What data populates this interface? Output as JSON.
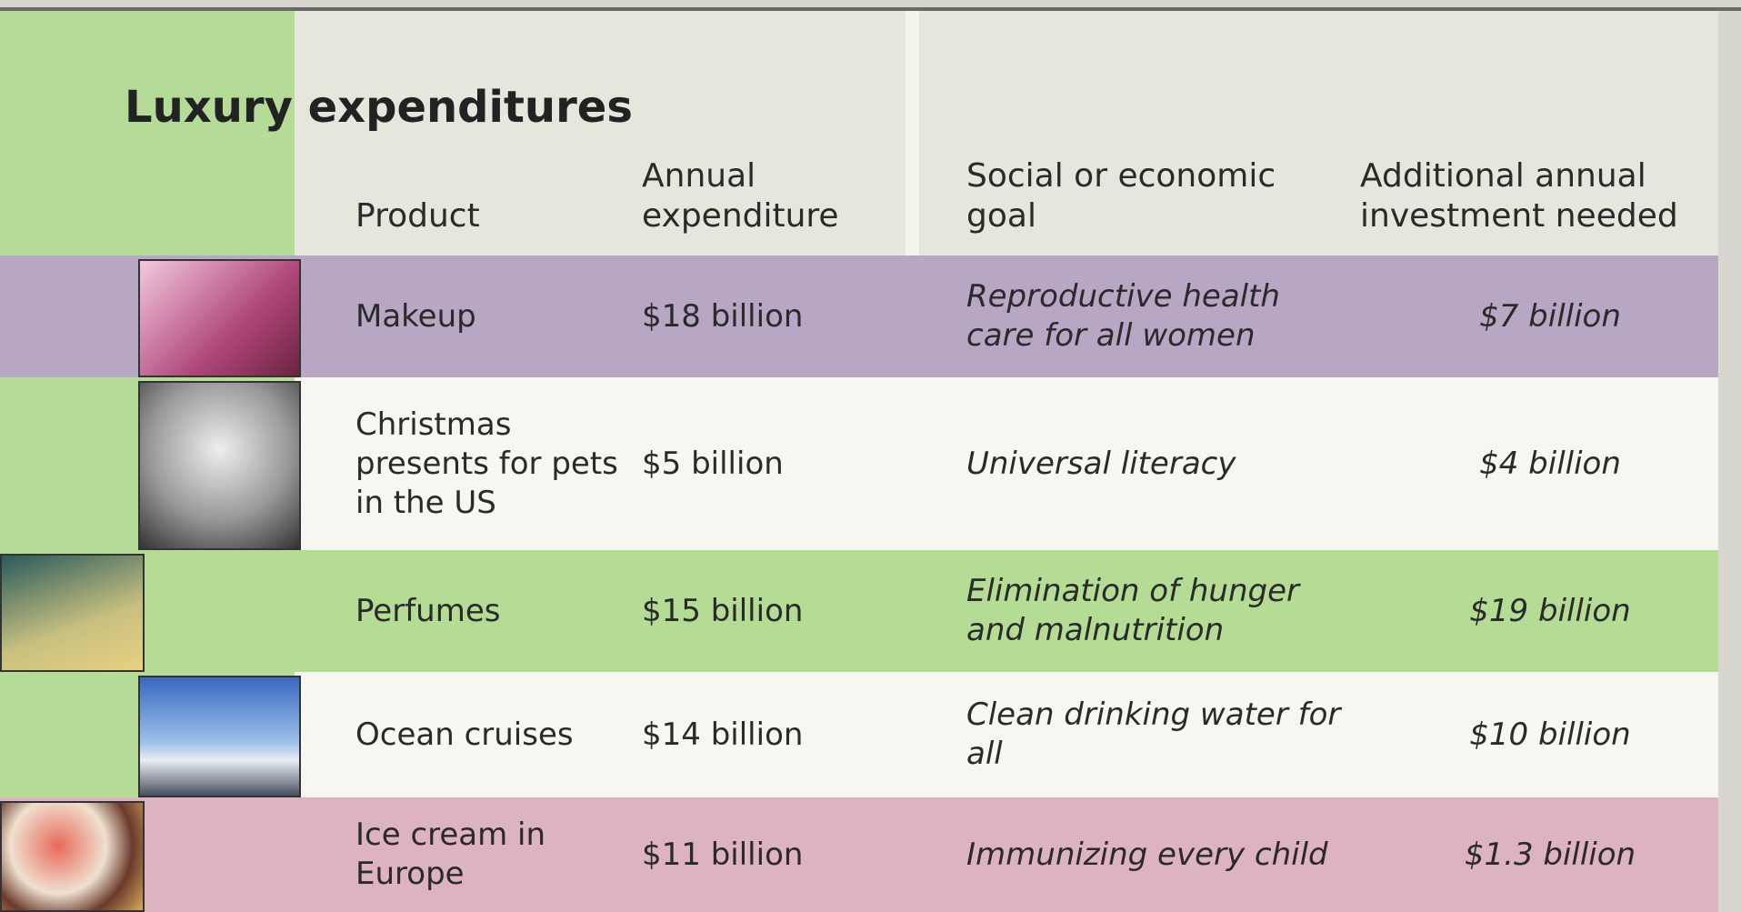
{
  "title": "Luxury expenditures",
  "table": {
    "headers": [
      "Product",
      "Annual expenditure",
      "Social or economic goal",
      "Additional annual investment needed"
    ],
    "rows": [
      [
        "Makeup",
        "$18 billion",
        "Reproductive health care for all women",
        "$7 billion"
      ],
      [
        "Christmas presents for pets in the US",
        "$5 billion",
        "Universal literacy",
        "$4 billion"
      ],
      [
        "Perfumes",
        "$15 billion",
        "Elimination of hunger and malnutrition",
        "$19 billion"
      ],
      [
        "Ocean cruises",
        "$14 billion",
        "Clean drinking water for all",
        "$10 billion"
      ],
      [
        "Ice cream in Europe",
        "$11 billion",
        "Immunizing every child",
        "$1.3 billion"
      ]
    ]
  }
}
